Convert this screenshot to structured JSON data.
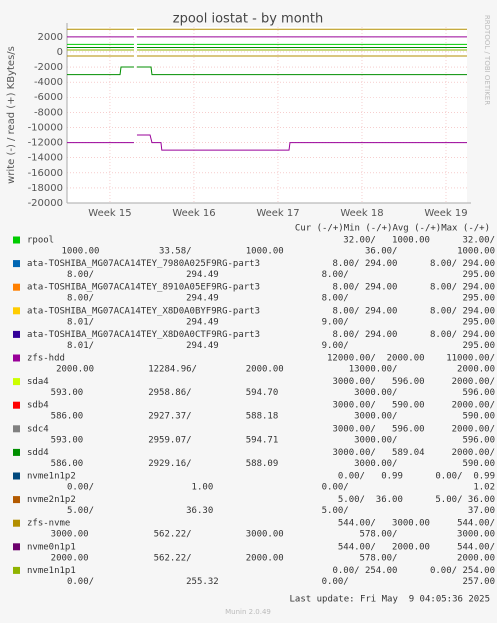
{
  "chart_data": {
    "type": "line",
    "title": "zpool iostat - by month",
    "y_label": "write (-) / read (+) KBytes/s",
    "side_label": "RRDTOOL / TOBI OETIKER",
    "legend_header": "Cur (-/+)Min (-/+)Avg (-/+)Max (-/+)",
    "last_update": "Last update: Fri May  9 04:05:36 2025",
    "footer": "Munin 2.0.49",
    "ylim": [
      -20000,
      3300
    ],
    "yticks": [
      2000,
      0,
      -2000,
      -4000,
      -6000,
      -8000,
      -10000,
      -12000,
      -14000,
      -16000,
      -18000,
      -20000
    ],
    "xlim": [
      0,
      33.33
    ],
    "xticks": [
      {
        "value": 3.58,
        "label": "Week 15"
      },
      {
        "value": 10.58,
        "label": "Week 16"
      },
      {
        "value": 17.58,
        "label": "Week 17"
      },
      {
        "value": 24.58,
        "label": "Week 18"
      },
      {
        "value": 31.58,
        "label": "Week 19"
      }
    ],
    "grid": true,
    "series": [
      {
        "name": "rpool",
        "color": "#00cc00",
        "row1": "32.00/   1000.00      32.00/",
        "row2": "1000.00           33.58/          1000.00               36.00/           1000.00",
        "lines": [
          {
            "x": [
              0,
              5.58
            ],
            "values": [
              1000,
              1000
            ]
          },
          {
            "x": [
              5.83,
              33.33
            ],
            "values": [
              1000,
              1000
            ]
          }
        ]
      },
      {
        "name": "ata-TOSHIBA_MG07ACA14TEY_7980A025F9RG-part3",
        "color": "#0066b3",
        "row1": "8.00/ 294.00      8.00/ 294.00",
        "row2": "8.00/                 294.49                   8.00/                     295.00",
        "lines": []
      },
      {
        "name": "ata-TOSHIBA_MG07ACA14TEY_8910A05EF9RG-part3",
        "color": "#ff8000",
        "row1": "8.00/ 294.00      8.00/ 294.00",
        "row2": "8.00/                 294.49                   8.00/                     295.00",
        "lines": []
      },
      {
        "name": "ata-TOSHIBA_MG07ACA14TEY_X8D0A0BYF9RG-part3",
        "color": "#ffcc00",
        "row1": "8.00/ 294.00      8.00/ 294.00",
        "row2": "8.01/                 294.49                   9.00/                     295.00",
        "lines": []
      },
      {
        "name": "ata-TOSHIBA_MG07ACA14TEY_X8D0A0CTF9RG-part3",
        "color": "#330099",
        "row1": "8.00/ 294.00      8.00/ 294.00",
        "row2": "8.01/                 294.49                   9.00/                     295.00",
        "lines": []
      },
      {
        "name": "zfs-hdd",
        "color": "#990099",
        "row1": "12000.00/  2000.00    11000.00/",
        "row2": "2000.00          12284.96/         2000.00            13000.00/           2000.00",
        "lines": [
          {
            "x": [
              0,
              5.58
            ],
            "values": [
              2000,
              2000
            ]
          },
          {
            "x": [
              5.83,
              33.33
            ],
            "values": [
              2000,
              2000
            ]
          },
          {
            "x": [
              0,
              5.58
            ],
            "values": [
              -12000,
              -12000
            ]
          },
          {
            "x": [
              5.83,
              6.92,
              7.08,
              7.83,
              7.9,
              18.5,
              18.58,
              33.33
            ],
            "values": [
              -11000,
              -11000,
              -12000,
              -12000,
              -13000,
              -13000,
              -12000,
              -12000
            ]
          }
        ]
      },
      {
        "name": "sda4",
        "color": "#ccff00",
        "row1": "3000.00/   596.00     2000.00/",
        "row2": "593.00            2958.86/          594.70              3000.00/            596.00",
        "lines": []
      },
      {
        "name": "sdb4",
        "color": "#ff0000",
        "row1": "3000.00/   590.00     2000.00/",
        "row2": "586.00            2927.37/          588.18              3000.00/            590.00",
        "lines": []
      },
      {
        "name": "sdc4",
        "color": "#808080",
        "row1": "3000.00/   596.00     2000.00/",
        "row2": "593.00            2959.07/          594.71              3000.00/            596.00",
        "lines": []
      },
      {
        "name": "sdd4",
        "color": "#008f00",
        "row1": "3000.00/   589.04     2000.00/",
        "row2": "586.00            2929.16/          588.09              3000.00/            590.00",
        "lines": [
          {
            "x": [
              0,
              5.58
            ],
            "values": [
              590,
              590
            ]
          },
          {
            "x": [
              5.83,
              33.33
            ],
            "values": [
              590,
              590
            ]
          },
          {
            "x": [
              0,
              4.42,
              4.5,
              5.58
            ],
            "values": [
              -3000,
              -3000,
              -2000,
              -2000
            ]
          },
          {
            "x": [
              5.83,
              7.0,
              7.08,
              33.33
            ],
            "values": [
              -2000,
              -2000,
              -3000,
              -3000
            ]
          }
        ]
      },
      {
        "name": "nvme1n1p2",
        "color": "#00487d",
        "row1": "0.00/   0.99      0.00/  0.99",
        "row2": "0.00/                  1.00                    0.00/                       1.02",
        "lines": []
      },
      {
        "name": "nvme2n1p2",
        "color": "#b35a00",
        "row1": "5.00/  36.00      5.00/ 36.00",
        "row2": "5.00/                 36.30                    5.00/                      37.00",
        "lines": []
      },
      {
        "name": "zfs-nvme",
        "color": "#b38f00",
        "row1": "544.00/   3000.00     544.00/",
        "row2": "3000.00            562.22/          3000.00              578.00/           3000.00",
        "lines": [
          {
            "x": [
              0,
              5.58
            ],
            "values": [
              3000,
              3000
            ]
          },
          {
            "x": [
              5.83,
              33.33
            ],
            "values": [
              3000,
              3000
            ]
          },
          {
            "x": [
              0,
              5.58
            ],
            "values": [
              -544,
              -544
            ]
          },
          {
            "x": [
              5.83,
              33.33
            ],
            "values": [
              -544,
              -544
            ]
          }
        ]
      },
      {
        "name": "nvme0n1p1",
        "color": "#6b006b",
        "row1": "544.00/   2000.00     544.00/",
        "row2": "2000.00            562.22/          2000.00              578.00/           2000.00",
        "lines": []
      },
      {
        "name": "nvme1n1p1",
        "color": "#8fb300",
        "row1": "0.00/ 254.00      0.00/ 254.00",
        "row2": "0.00/                 255.32                   0.00/                     257.00",
        "lines": [
          {
            "x": [
              0,
              5.58
            ],
            "values": [
              254,
              254
            ]
          },
          {
            "x": [
              5.83,
              33.33
            ],
            "values": [
              254,
              254
            ]
          }
        ]
      }
    ]
  }
}
